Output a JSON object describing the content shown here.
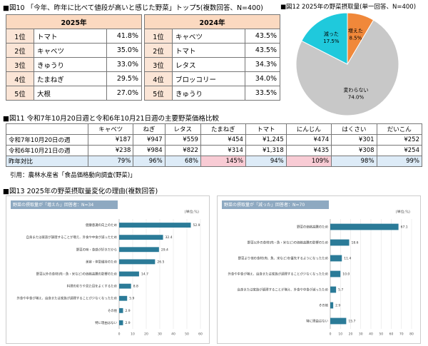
{
  "fig10": {
    "title": "■図10 「今年、昨年に比べて値段が高いと感じた野菜」トップ5(複数回答、N=400)",
    "tables": [
      {
        "year": "2025年",
        "rows": [
          [
            "1位",
            "トマト",
            "41.8%"
          ],
          [
            "2位",
            "キャベツ",
            "35.0%"
          ],
          [
            "3位",
            "きゅうり",
            "33.0%"
          ],
          [
            "4位",
            "たまねぎ",
            "29.5%"
          ],
          [
            "5位",
            "大根",
            "27.0%"
          ]
        ]
      },
      {
        "year": "2024年",
        "rows": [
          [
            "1位",
            "キャベツ",
            "43.5%"
          ],
          [
            "2位",
            "トマト",
            "43.5%"
          ],
          [
            "3位",
            "レタス",
            "34.3%"
          ],
          [
            "4位",
            "ブロッコリー",
            "34.0%"
          ],
          [
            "5位",
            "きゅうり",
            "33.5%"
          ]
        ]
      }
    ]
  },
  "fig11": {
    "title": "■図11 令和7年10月20日週と令和6年10月21日週の主要野菜価格比較",
    "header": [
      "キャベツ",
      "ねぎ",
      "レタス",
      "たまねぎ",
      "トマト",
      "にんじん",
      "はくさい",
      "だいこん"
    ],
    "rows": [
      {
        "label": "令和7年10月20日の週",
        "cells": [
          "¥187",
          "¥947",
          "¥559",
          "¥454",
          "¥1,245",
          "¥474",
          "¥301",
          "¥252"
        ]
      },
      {
        "label": "令和6年10月21日の週",
        "cells": [
          "¥238",
          "¥984",
          "¥822",
          "¥314",
          "¥1,318",
          "¥435",
          "¥308",
          "¥254"
        ]
      },
      {
        "label": "昨年対比",
        "cells": [
          "79%",
          "96%",
          "68%",
          "145%",
          "94%",
          "109%",
          "98%",
          "99%"
        ],
        "cell_colors": [
          "#ddebf7",
          "#ddebf7",
          "#ddebf7",
          "#f8cbd4",
          "#ddebf7",
          "#f8cbd4",
          "#ddebf7",
          "#ddebf7"
        ]
      }
    ],
    "source": "引用：農林水産省「食品価格動向調査(野菜)」"
  },
  "fig13": {
    "title": "■図13 2025年の野菜摂取量変化の理由(複数回答)"
  },
  "chart_data": [
    {
      "type": "pie",
      "title": "■図12 2025年の野菜摂取量(単一回答、N=400)",
      "categories": [
        "増えた",
        "変わらない",
        "減った"
      ],
      "values": [
        8.5,
        74.0,
        17.5
      ],
      "value_labels": [
        "8.5%",
        "74.0%",
        "17.5%"
      ],
      "colors": [
        "#f0883a",
        "#c8c8c8",
        "#1fc9dc"
      ]
    },
    {
      "type": "bar",
      "orientation": "horizontal",
      "title": "野菜の摂取量が「増えた」回答者：N=34",
      "unit": "(単位:%)",
      "categories": [
        "健康意識の向上のため",
        "自身または家族が調理することが増え、外食や中食が減ったため",
        "野菜の味・食感が好きだから",
        "美容・体型維持のため",
        "野菜以外の食材(肉・魚・米など)の価格高騰の影響のため",
        "料理の彩りや見た目をよくするため",
        "外食や中食が増え、自身または家族が調理することが少なくなったため",
        "その他",
        "特に理由はない"
      ],
      "values": [
        52.9,
        32.4,
        29.4,
        26.5,
        14.7,
        8.8,
        5.9,
        2.9,
        2.9
      ],
      "value_labels": [
        "52.9",
        "32.4",
        "29.4",
        "26.5",
        "14.7",
        "8.8",
        "5.9",
        "2.9",
        "2.9"
      ],
      "color": "#2b7b98",
      "xlim": [
        0,
        60
      ],
      "xticks": [
        0,
        10,
        20,
        30,
        40,
        50,
        60
      ],
      "grid": true
    },
    {
      "type": "bar",
      "orientation": "horizontal",
      "title": "野菜の摂取量が「減った」回答者：N=70",
      "unit": "(単位:%)",
      "categories": [
        "野菜の価格高騰のため",
        "野菜以外の食材(肉・魚・米など)の価格高騰の影響のため",
        "野菜より他の食材(肉、魚、米など)を優先するようになったため",
        "外食や中食が増え、自身または家族が調理することが少なくなったため",
        "自身または家族が調理することが増え、外食や中食が減ったため",
        "その他",
        "特に理由はない"
      ],
      "values": [
        67.1,
        18.6,
        11.4,
        10.0,
        5.7,
        2.9,
        15.7
      ],
      "value_labels": [
        "67.1",
        "18.6",
        "11.4",
        "10.0",
        "5.7",
        "2.9",
        "15.7"
      ],
      "color": "#2b7b98",
      "xlim": [
        0,
        80
      ],
      "xticks": [
        0,
        10,
        20,
        30,
        40,
        50,
        60,
        70,
        80
      ],
      "grid": true
    }
  ]
}
